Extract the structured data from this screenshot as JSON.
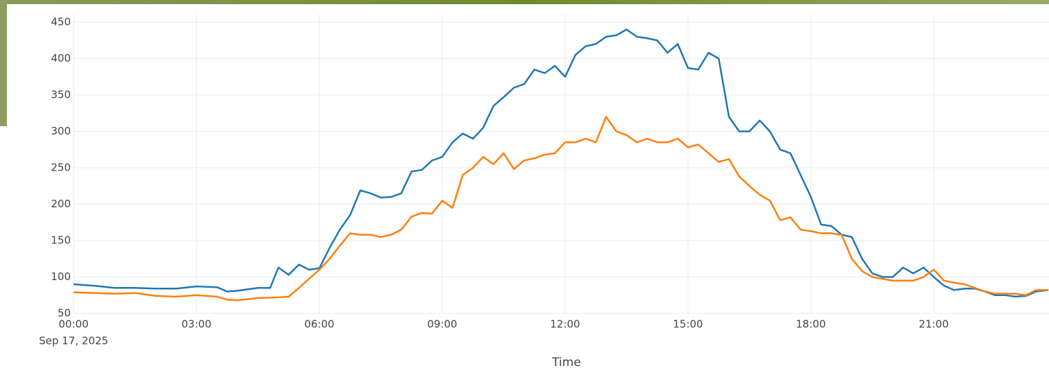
{
  "chart_data": {
    "type": "line",
    "x_label": "Time",
    "date_label": "Sep 17, 2025",
    "xlim": [
      0,
      23.8
    ],
    "xticks": [
      {
        "value": 0,
        "label": "00:00"
      },
      {
        "value": 3,
        "label": "03:00"
      },
      {
        "value": 6,
        "label": "06:00"
      },
      {
        "value": 9,
        "label": "09:00"
      },
      {
        "value": 12,
        "label": "12:00"
      },
      {
        "value": 15,
        "label": "15:00"
      },
      {
        "value": 18,
        "label": "18:00"
      },
      {
        "value": 21,
        "label": "21:00"
      }
    ],
    "ylim": [
      50,
      450
    ],
    "yticks": [
      50,
      100,
      150,
      200,
      250,
      300,
      350,
      400,
      450
    ],
    "grid": true,
    "series": [
      {
        "color": "#1f77b4",
        "x": [
          0,
          0.5,
          1,
          1.5,
          2,
          2.5,
          3,
          3.5,
          3.75,
          4,
          4.5,
          4.8,
          5,
          5.25,
          5.5,
          5.75,
          6,
          6.25,
          6.5,
          6.75,
          7,
          7.25,
          7.5,
          7.75,
          8,
          8.25,
          8.5,
          8.75,
          9,
          9.25,
          9.5,
          9.75,
          10,
          10.25,
          10.5,
          10.75,
          11,
          11.25,
          11.5,
          11.75,
          12,
          12.25,
          12.5,
          12.75,
          13,
          13.25,
          13.5,
          13.75,
          14,
          14.25,
          14.5,
          14.75,
          15,
          15.25,
          15.5,
          15.75,
          16,
          16.25,
          16.5,
          16.75,
          17,
          17.25,
          17.5,
          17.75,
          18,
          18.25,
          18.5,
          18.75,
          19,
          19.25,
          19.5,
          19.75,
          20,
          20.25,
          20.5,
          20.75,
          21,
          21.25,
          21.5,
          21.75,
          22,
          22.25,
          22.5,
          22.75,
          23,
          23.25,
          23.5,
          23.8
        ],
        "values": [
          90,
          88,
          85,
          85,
          84,
          84,
          87,
          86,
          80,
          81,
          85,
          85,
          113,
          103,
          117,
          110,
          112,
          140,
          165,
          185,
          219,
          215,
          209,
          210,
          215,
          245,
          247,
          260,
          265,
          285,
          297,
          290,
          305,
          335,
          347,
          360,
          365,
          385,
          380,
          390,
          375,
          405,
          417,
          420,
          430,
          432,
          440,
          430,
          428,
          425,
          408,
          420,
          387,
          385,
          408,
          400,
          320,
          300,
          300,
          315,
          300,
          275,
          270,
          240,
          210,
          172,
          170,
          158,
          155,
          125,
          105,
          100,
          100,
          113,
          105,
          113,
          100,
          88,
          82,
          84,
          84,
          80,
          75,
          75,
          73,
          74,
          80,
          82
        ]
      },
      {
        "color": "#ff7f0e",
        "x": [
          0,
          0.5,
          1,
          1.5,
          2,
          2.5,
          3,
          3.5,
          3.75,
          4,
          4.5,
          5,
          5.25,
          5.5,
          6,
          6.25,
          6.5,
          6.75,
          7,
          7.25,
          7.5,
          7.75,
          8,
          8.25,
          8.5,
          8.75,
          9,
          9.25,
          9.5,
          9.75,
          10,
          10.25,
          10.5,
          10.75,
          11,
          11.25,
          11.5,
          11.75,
          12,
          12.25,
          12.5,
          12.75,
          13,
          13.25,
          13.5,
          13.75,
          14,
          14.25,
          14.5,
          14.75,
          15,
          15.25,
          15.5,
          15.75,
          16,
          16.25,
          16.5,
          16.75,
          17,
          17.25,
          17.5,
          17.75,
          18,
          18.25,
          18.5,
          18.75,
          19,
          19.25,
          19.5,
          20,
          20.5,
          20.75,
          21,
          21.25,
          21.5,
          21.75,
          22,
          22.25,
          22.5,
          23,
          23.25,
          23.5,
          23.8
        ],
        "values": [
          79,
          78,
          77,
          78,
          74,
          73,
          75,
          73,
          69,
          68,
          71,
          72,
          73,
          85,
          110,
          125,
          143,
          160,
          158,
          158,
          155,
          158,
          165,
          183,
          188,
          187,
          205,
          195,
          240,
          250,
          265,
          255,
          270,
          248,
          260,
          263,
          268,
          270,
          285,
          285,
          290,
          285,
          320,
          300,
          295,
          285,
          290,
          285,
          285,
          290,
          278,
          282,
          270,
          258,
          262,
          238,
          225,
          213,
          205,
          178,
          182,
          165,
          163,
          160,
          160,
          158,
          125,
          108,
          100,
          95,
          95,
          100,
          110,
          95,
          92,
          90,
          85,
          80,
          77,
          77,
          75,
          82,
          82
        ]
      }
    ]
  }
}
